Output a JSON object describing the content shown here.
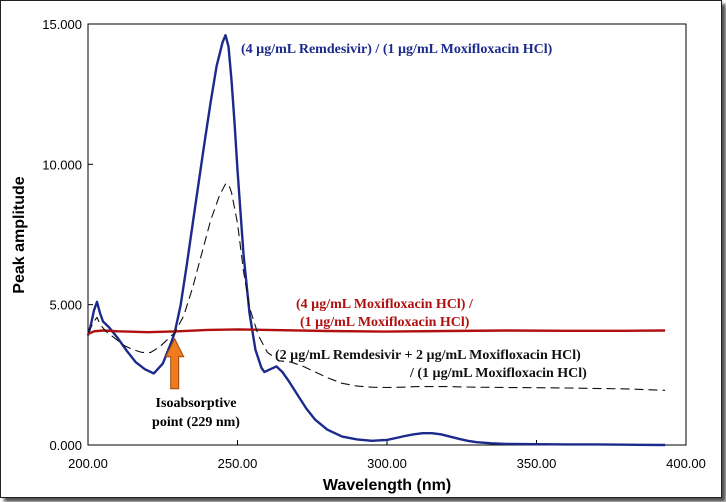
{
  "chart_data": {
    "type": "line",
    "title": "",
    "xlabel": "Wavelength (nm)",
    "ylabel": "Peak amplitude",
    "xlim": [
      200,
      400
    ],
    "ylim": [
      0,
      15
    ],
    "x_ticks": [
      {
        "value": 200,
        "label": "200.00"
      },
      {
        "value": 250,
        "label": "250.00"
      },
      {
        "value": 300,
        "label": "300.00"
      },
      {
        "value": 350,
        "label": "350.00"
      },
      {
        "value": 400,
        "label": "400.00"
      }
    ],
    "y_ticks": [
      {
        "value": 0,
        "label": "0.000"
      },
      {
        "value": 5,
        "label": "5.000"
      },
      {
        "value": 10,
        "label": "10.000"
      },
      {
        "value": 15,
        "label": "15.000"
      }
    ],
    "grid": false,
    "series": [
      {
        "name": "(4 µg/mL Remdesivir) / (1 µg/mL Moxifloxacin HCl)",
        "color": "#1c2a8c",
        "style": "solid",
        "x": [
          200,
          201,
          202,
          203,
          204,
          205,
          207,
          210,
          213,
          216,
          219,
          222,
          225,
          228,
          229,
          231,
          233,
          236,
          239,
          241,
          243,
          245,
          246,
          247,
          248,
          249,
          250,
          252,
          254,
          256,
          258,
          259,
          261,
          263,
          265,
          267,
          270,
          273,
          276,
          280,
          285,
          290,
          295,
          300,
          303,
          306,
          309,
          312,
          315,
          318,
          321,
          324,
          327,
          330,
          335,
          340,
          350,
          360,
          370,
          380,
          393
        ],
        "y": [
          3.9,
          4.3,
          4.8,
          5.1,
          4.7,
          4.4,
          4.2,
          3.8,
          3.35,
          2.95,
          2.7,
          2.55,
          2.9,
          3.7,
          4.0,
          5.0,
          6.4,
          8.6,
          10.8,
          12.2,
          13.5,
          14.35,
          14.6,
          14.2,
          13.0,
          11.5,
          9.8,
          6.8,
          4.7,
          3.4,
          2.75,
          2.6,
          2.7,
          2.8,
          2.6,
          2.3,
          1.8,
          1.3,
          0.9,
          0.55,
          0.3,
          0.2,
          0.15,
          0.18,
          0.25,
          0.32,
          0.38,
          0.42,
          0.42,
          0.38,
          0.3,
          0.22,
          0.15,
          0.1,
          0.06,
          0.04,
          0.03,
          0.02,
          0.02,
          0.01,
          0.0
        ]
      },
      {
        "name": "(4 µg/mL Moxifloxacin HCl) / (1 µg/mL Moxifloxacin HCl)",
        "color": "#b01010",
        "style": "solid",
        "x": [
          200,
          202,
          205,
          210,
          220,
          230,
          240,
          250,
          260,
          280,
          300,
          320,
          340,
          360,
          380,
          393
        ],
        "y": [
          3.95,
          4.05,
          4.08,
          4.05,
          4.02,
          4.05,
          4.1,
          4.12,
          4.1,
          4.06,
          4.04,
          4.06,
          4.08,
          4.07,
          4.07,
          4.08
        ]
      },
      {
        "name": "(2 µg/mL Remdesivir + 2 µg/mL Moxifloxacin HCl) / (1 µg/mL Moxifloxacin HCl)",
        "color": "#111111",
        "style": "dashed",
        "x": [
          200,
          202,
          203,
          204,
          206,
          209,
          212,
          215,
          218,
          221,
          224,
          227,
          229,
          232,
          235,
          238,
          241,
          244,
          246,
          247,
          248,
          250,
          252,
          254,
          257,
          260,
          264,
          268,
          272,
          276,
          280,
          285,
          290,
          295,
          300,
          305,
          310,
          320,
          330,
          340,
          350,
          360,
          380,
          393
        ],
        "y": [
          4.0,
          4.4,
          4.55,
          4.3,
          4.05,
          3.8,
          3.55,
          3.4,
          3.3,
          3.3,
          3.5,
          3.8,
          4.0,
          4.6,
          5.6,
          6.8,
          8.0,
          8.9,
          9.3,
          9.3,
          9.0,
          7.9,
          6.2,
          4.9,
          3.9,
          3.3,
          3.0,
          2.95,
          2.8,
          2.6,
          2.4,
          2.2,
          2.1,
          2.06,
          2.05,
          2.06,
          2.08,
          2.08,
          2.06,
          2.05,
          2.04,
          2.03,
          2.0,
          1.95
        ]
      }
    ],
    "annotations": {
      "blue_label": "(4 µg/mL Remdesivir) / (1 µg/mL Moxifloxacin HCl)",
      "red_label_1": "(4 µg/mL Moxifloxacin HCl) /",
      "red_label_2": "(1 µg/mL Moxifloxacin HCl)",
      "black_label_1": "(2 µg/mL Remdesivir + 2 µg/mL Moxifloxacin HCl)",
      "black_label_2": "/ (1 µg/mL Moxifloxacin HCl)",
      "isoabsorptive_1": "Isoabsorptive",
      "isoabsorptive_2": "point (229 nm)",
      "isoabsorptive_x": 229,
      "arrow_color": "#f07a1e"
    }
  }
}
